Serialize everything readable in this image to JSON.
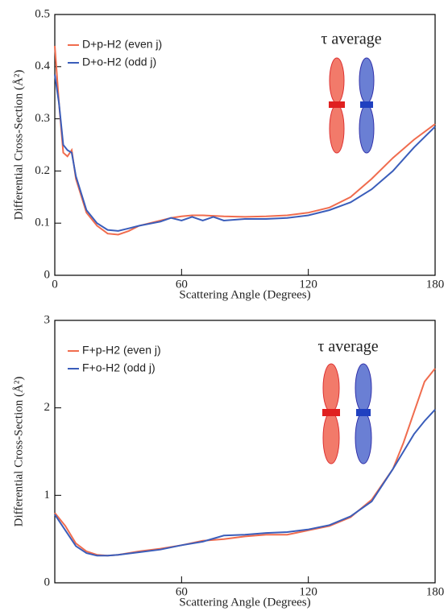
{
  "chart_data": [
    {
      "type": "line",
      "annotation": "τ average",
      "x_label": "Scattering Angle (Degrees)",
      "y_label": "Differential Cross-Section (Å²)",
      "xlim": [
        0,
        180
      ],
      "xticks": [
        0,
        60,
        120,
        180
      ],
      "ylim": [
        0,
        0.5
      ],
      "yticks": [
        0,
        0.1,
        0.2,
        0.3,
        0.4,
        0.5
      ],
      "x": [
        0,
        2,
        4,
        6,
        8,
        10,
        15,
        20,
        25,
        30,
        35,
        40,
        50,
        55,
        60,
        65,
        70,
        75,
        80,
        90,
        100,
        110,
        120,
        130,
        140,
        150,
        160,
        170,
        180
      ],
      "series": [
        {
          "name": "D+p-H2 (even j)",
          "color": "#f06c4e",
          "values": [
            0.44,
            0.33,
            0.235,
            0.228,
            0.24,
            0.185,
            0.12,
            0.095,
            0.08,
            0.078,
            0.085,
            0.095,
            0.105,
            0.11,
            0.113,
            0.115,
            0.115,
            0.114,
            0.113,
            0.112,
            0.113,
            0.115,
            0.12,
            0.13,
            0.15,
            0.185,
            0.225,
            0.26,
            0.29
          ]
        },
        {
          "name": "D+o-H2 (odd j)",
          "color": "#3a5dba",
          "values": [
            0.385,
            0.33,
            0.25,
            0.24,
            0.235,
            0.19,
            0.125,
            0.1,
            0.087,
            0.085,
            0.09,
            0.095,
            0.103,
            0.11,
            0.105,
            0.112,
            0.105,
            0.112,
            0.105,
            0.108,
            0.108,
            0.11,
            0.115,
            0.125,
            0.14,
            0.165,
            0.2,
            0.245,
            0.285
          ]
        }
      ]
    },
    {
      "type": "line",
      "annotation": "τ average",
      "x_label": "Scattering Angle (Degrees)",
      "y_label": "Differential Cross-Section (Å²)",
      "xlim": [
        0,
        180
      ],
      "xticks": [
        60,
        120,
        180
      ],
      "ylim": [
        0,
        3
      ],
      "yticks": [
        0,
        1,
        2,
        3
      ],
      "x": [
        0,
        5,
        10,
        15,
        20,
        25,
        30,
        40,
        50,
        60,
        70,
        80,
        90,
        100,
        110,
        120,
        130,
        140,
        150,
        160,
        165,
        170,
        175,
        180
      ],
      "series": [
        {
          "name": "F+p-H2 (even j)",
          "color": "#f06c4e",
          "values": [
            0.8,
            0.65,
            0.45,
            0.36,
            0.32,
            0.31,
            0.32,
            0.36,
            0.39,
            0.43,
            0.48,
            0.5,
            0.53,
            0.55,
            0.55,
            0.6,
            0.65,
            0.75,
            0.95,
            1.3,
            1.6,
            1.95,
            2.3,
            2.45
          ]
        },
        {
          "name": "F+o-H2 (odd j)",
          "color": "#3a5dba",
          "values": [
            0.78,
            0.6,
            0.42,
            0.34,
            0.31,
            0.31,
            0.32,
            0.35,
            0.38,
            0.43,
            0.47,
            0.54,
            0.55,
            0.57,
            0.58,
            0.61,
            0.66,
            0.76,
            0.93,
            1.3,
            1.5,
            1.7,
            1.85,
            1.98
          ]
        }
      ]
    }
  ]
}
